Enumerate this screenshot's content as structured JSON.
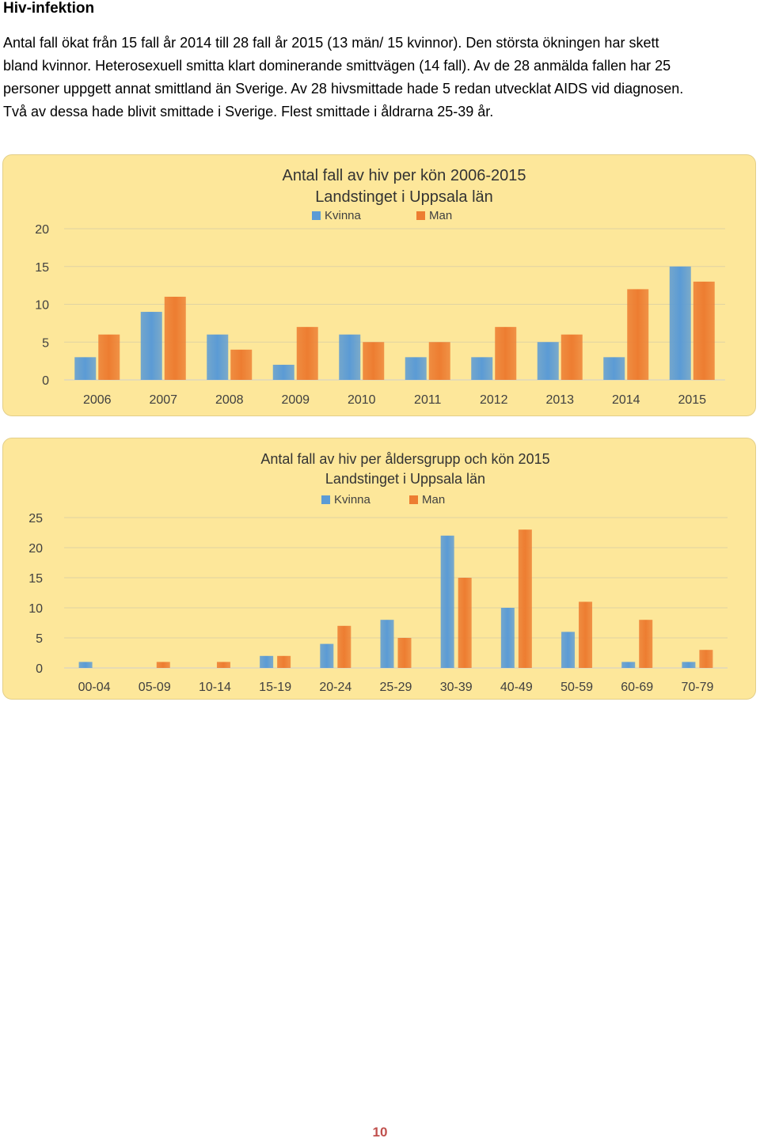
{
  "heading": "Hiv-infektion",
  "paragraph_lines": [
    "Antal fall ökat från 15 fall år 2014 till 28 fall år 2015 (13 män/ 15 kvinnor). Den största ökningen har skett",
    "bland kvinnor. Heterosexuell smitta klart dominerande smittvägen (14 fall). Av de 28 anmälda fallen har 25",
    "personer uppgett annat smittland än Sverige. Av 28 hivsmittade hade 5 redan utvecklat AIDS vid diagnosen.",
    "Två av dessa hade blivit smittade i Sverige. Flest smittade i åldrarna 25-39 år."
  ],
  "page_number": "10",
  "colors": {
    "kvinna": "#5b9bd5",
    "man": "#ed7d31",
    "chart_background": "#fde79a",
    "page_number": "#c0504d"
  },
  "chart_data": [
    {
      "type": "bar",
      "title": "Antal fall av hiv per kön 2006-2015",
      "subtitle": "Landstinget i Uppsala län",
      "legend_position": "top",
      "grid": true,
      "categories": [
        "2006",
        "2007",
        "2008",
        "2009",
        "2010",
        "2011",
        "2012",
        "2013",
        "2014",
        "2015"
      ],
      "series": [
        {
          "name": "Kvinna",
          "values": [
            3,
            9,
            6,
            2,
            6,
            3,
            3,
            5,
            3,
            15
          ]
        },
        {
          "name": "Man",
          "values": [
            6,
            11,
            4,
            7,
            5,
            5,
            7,
            6,
            12,
            13
          ]
        }
      ],
      "ylim": [
        0,
        20
      ],
      "yticks": [
        "0",
        "5",
        "10",
        "15",
        "20"
      ]
    },
    {
      "type": "bar",
      "title": "Antal fall av hiv per åldersgrupp och kön 2015",
      "subtitle": "Landstinget i Uppsala län",
      "legend_position": "top",
      "grid": true,
      "categories": [
        "00-04",
        "05-09",
        "10-14",
        "15-19",
        "20-24",
        "25-29",
        "30-39",
        "40-49",
        "50-59",
        "60-69",
        "70-79"
      ],
      "series": [
        {
          "name": "Kvinna",
          "values": [
            1,
            0,
            0,
            2,
            4,
            8,
            22,
            10,
            6,
            1,
            1
          ]
        },
        {
          "name": "Man",
          "values": [
            0,
            1,
            1,
            2,
            7,
            5,
            15,
            23,
            11,
            8,
            3
          ]
        }
      ],
      "ylim": [
        0,
        25
      ],
      "yticks": [
        "0",
        "5",
        "10",
        "15",
        "20",
        "25"
      ]
    }
  ]
}
